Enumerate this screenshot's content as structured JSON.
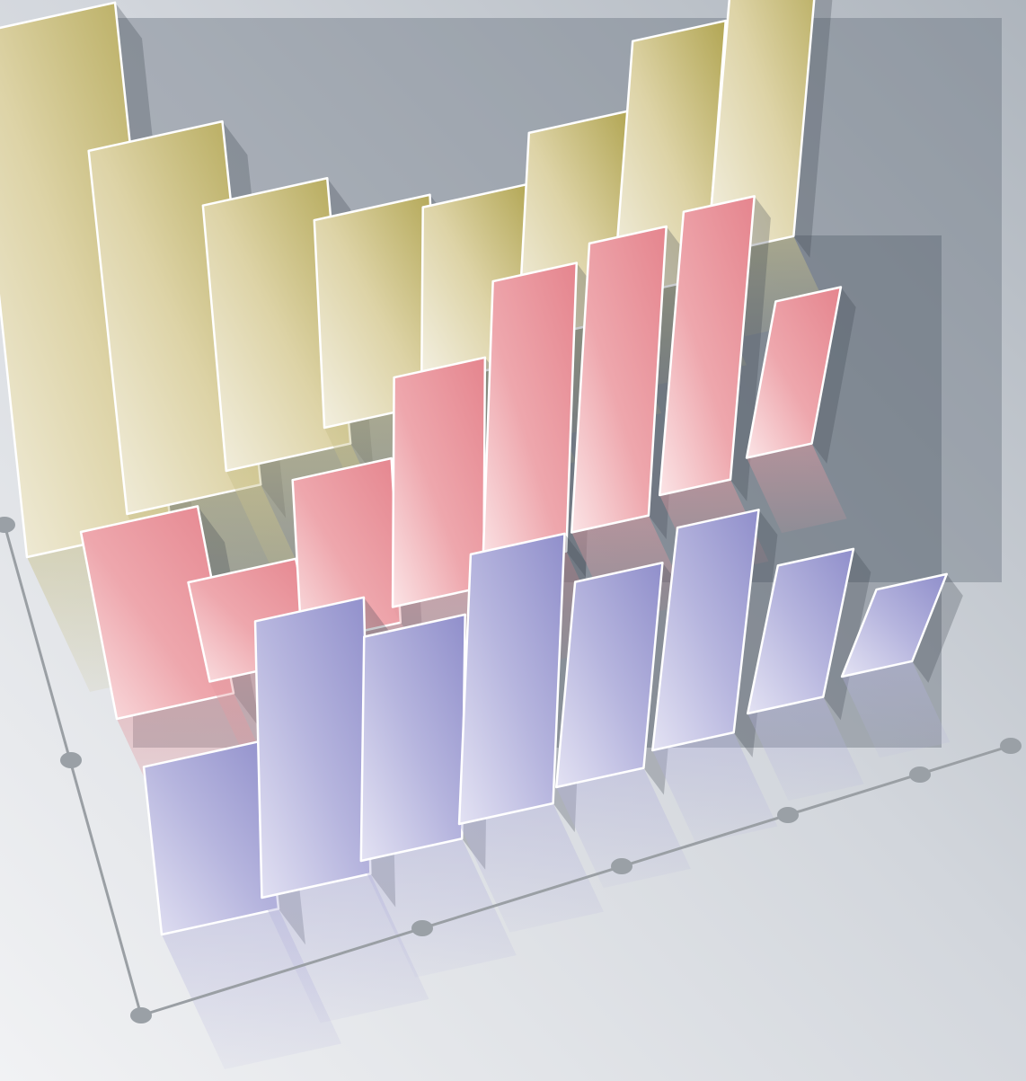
{
  "chart_data": {
    "type": "bar",
    "style": "3d-perspective",
    "title": "",
    "xlabel": "",
    "ylabel": "",
    "grid": false,
    "legend": "none",
    "categories": [
      "",
      "",
      "",
      "",
      "",
      "",
      "",
      ""
    ],
    "series": [
      {
        "values": [
          7.5,
          5.6,
          4.4,
          3.7,
          3.4,
          4.3,
          5.7,
          7.4
        ],
        "color": "#d8ce8a"
      },
      {
        "values": [
          2.6,
          1.5,
          2.7,
          4.1,
          5.6,
          6.1,
          6.5,
          3.9
        ],
        "color": "#e8959b"
      },
      {
        "values": [
          2.2,
          3.9,
          3.4,
          4.4,
          3.6,
          4.2,
          3.0,
          1.9
        ],
        "color": "#a9a8d8"
      }
    ]
  }
}
